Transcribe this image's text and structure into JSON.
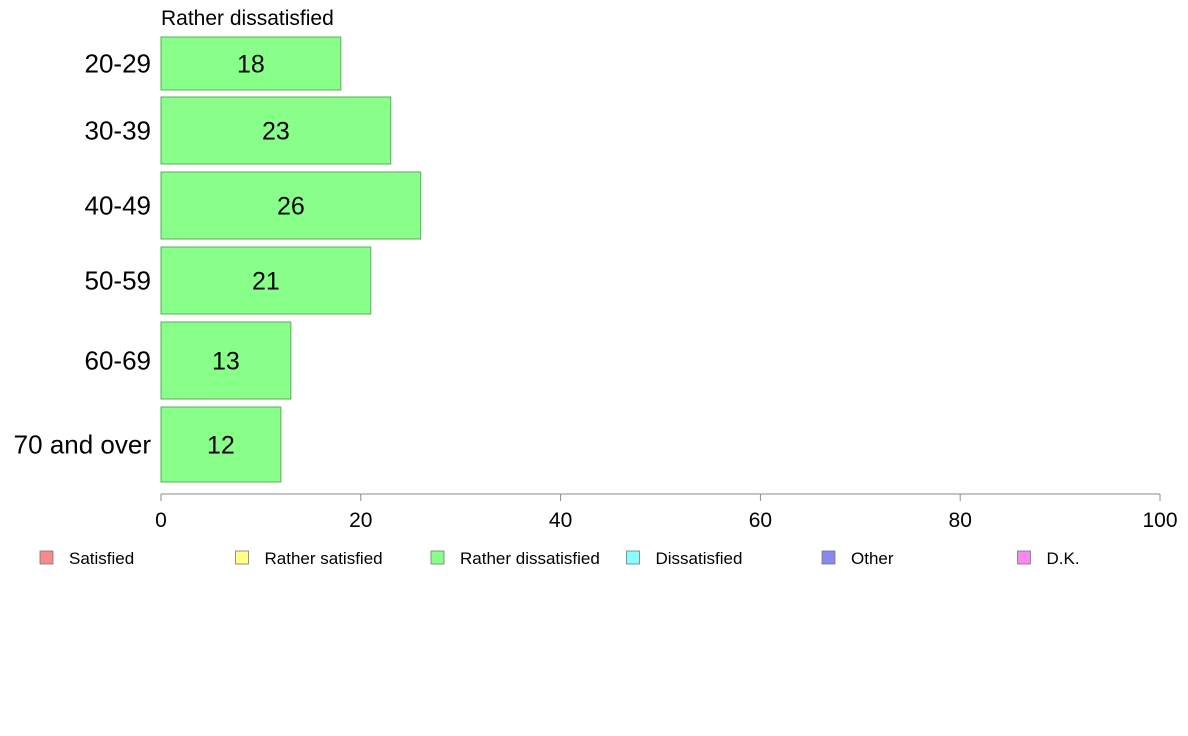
{
  "chart_data": {
    "type": "bar",
    "orientation": "horizontal",
    "title": "Rather dissatisfied",
    "xlabel": "",
    "ylabel": "",
    "categories": [
      "20-29",
      "30-39",
      "40-49",
      "50-59",
      "60-69",
      "70 and over"
    ],
    "series": [
      {
        "name": "Rather dissatisfied",
        "values": [
          18,
          23,
          26,
          21,
          13,
          12
        ],
        "color": "#88ff88"
      }
    ],
    "xlim": [
      0,
      100
    ],
    "xticks": [
      0,
      20,
      40,
      60,
      80,
      100
    ],
    "grid": false,
    "legend": {
      "placement": "bottom",
      "entries": [
        {
          "label": "Satisfied",
          "color": "#f78a8a"
        },
        {
          "label": "Rather satisfied",
          "color": "#ffff88"
        },
        {
          "label": "Rather dissatisfied",
          "color": "#88ff88"
        },
        {
          "label": "Dissatisfied",
          "color": "#88ffff"
        },
        {
          "label": "Other",
          "color": "#8888f0"
        },
        {
          "label": "D.K.",
          "color": "#f888f0"
        }
      ]
    }
  }
}
